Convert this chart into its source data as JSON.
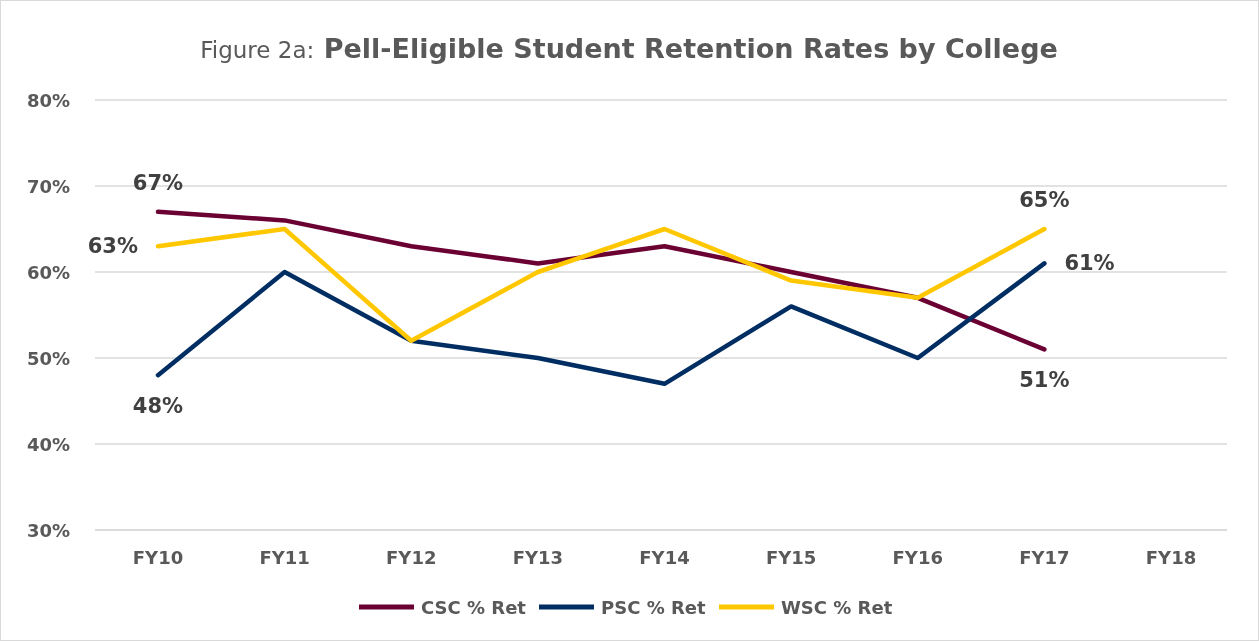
{
  "chart_data": {
    "type": "line",
    "title": "Figure 2a:  Pell-Eligible Student Retention Rates by College",
    "categories": [
      "FY10",
      "FY11",
      "FY12",
      "FY13",
      "FY14",
      "FY15",
      "FY16",
      "FY17",
      "FY18"
    ],
    "series": [
      {
        "name": "CSC % Ret",
        "color": "#6b0033",
        "values": [
          67,
          66,
          63,
          61,
          63,
          60,
          57,
          51,
          null
        ],
        "value_labels": [
          "67%",
          null,
          null,
          null,
          null,
          null,
          null,
          "51%",
          null
        ]
      },
      {
        "name": "PSC % Ret",
        "color": "#002d62",
        "values": [
          48,
          60,
          52,
          50,
          47,
          56,
          50,
          61,
          null
        ],
        "value_labels": [
          "48%",
          null,
          null,
          null,
          null,
          null,
          null,
          "61%",
          null
        ]
      },
      {
        "name": "WSC % Ret",
        "color": "#ffc700",
        "values": [
          63,
          65,
          52,
          60,
          65,
          59,
          57,
          65,
          null
        ],
        "value_labels": [
          "63%",
          null,
          null,
          null,
          null,
          null,
          null,
          "65%",
          null
        ]
      }
    ],
    "ylim": [
      30,
      80
    ],
    "yticks": [
      {
        "value": 30,
        "label": "30%"
      },
      {
        "value": 40,
        "label": "40%"
      },
      {
        "value": 50,
        "label": "50%"
      },
      {
        "value": 60,
        "label": "60%"
      },
      {
        "value": 70,
        "label": "70%"
      },
      {
        "value": 80,
        "label": "80%"
      }
    ],
    "grid": "y",
    "legend": "bottom",
    "marker": "none",
    "line_style": "solid"
  }
}
